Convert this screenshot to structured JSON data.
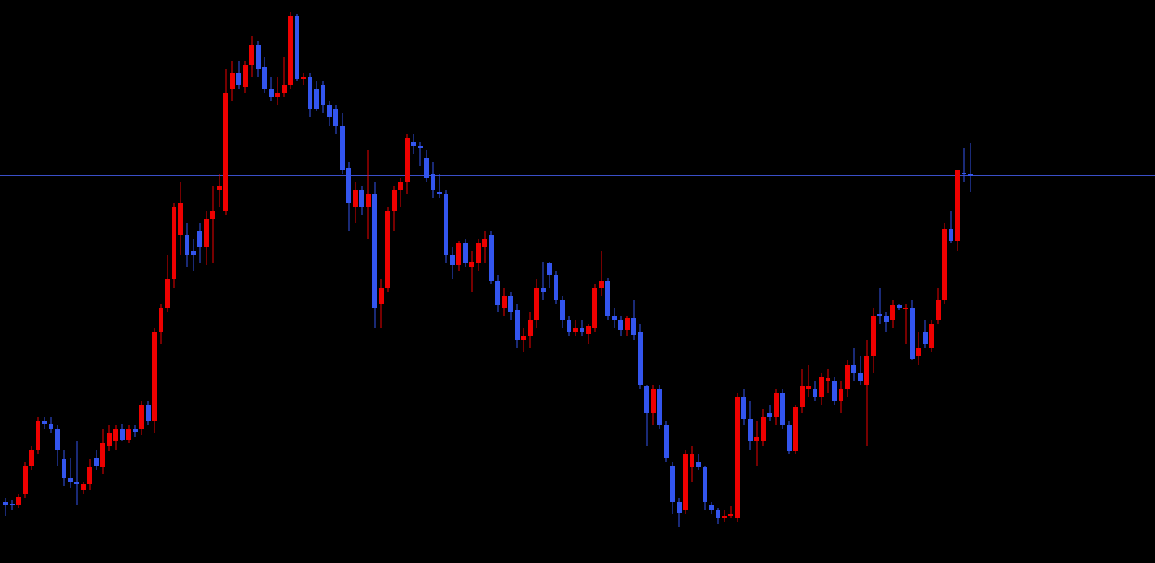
{
  "chart_data": {
    "type": "candlestick",
    "ylim": [
      0,
      695
    ],
    "up_color": "#ee0000",
    "down_color": "#3355ee",
    "hline": {
      "value": 479,
      "color": "#3a4fc8"
    },
    "series": {
      "open": [
        75,
        73,
        72,
        85,
        120,
        140,
        175,
        172,
        165,
        128,
        105,
        100,
        90,
        98,
        130,
        118,
        145,
        150,
        165,
        152,
        165,
        165,
        195,
        175,
        285,
        315,
        350,
        405,
        405,
        385,
        410,
        390,
        425,
        460,
        435,
        585,
        605,
        588,
        615,
        640,
        612,
        585,
        575,
        580,
        590,
        675,
        598,
        600,
        585,
        590,
        565,
        560,
        540,
        488,
        440,
        460,
        440,
        455,
        320,
        340,
        435,
        460,
        470,
        520,
        515,
        500,
        480,
        458,
        455,
        380,
        368,
        395,
        365,
        370,
        390,
        405,
        348,
        315,
        330,
        312,
        275,
        280,
        300,
        340,
        370,
        355,
        325,
        300,
        285,
        290,
        283,
        290,
        340,
        348,
        305,
        300,
        288,
        303,
        285,
        218,
        185,
        215,
        170,
        120,
        75,
        65,
        118,
        125,
        118,
        72,
        65,
        55,
        58,
        55,
        205,
        178,
        150,
        150,
        185,
        180,
        210,
        170,
        138,
        192,
        215,
        215,
        205,
        225,
        225,
        200,
        215,
        245,
        235,
        220,
        255,
        307,
        305,
        300,
        318,
        313,
        315,
        255,
        285,
        265,
        300,
        325,
        412,
        398,
        482,
        480
      ],
      "high": [
        80,
        78,
        85,
        125,
        145,
        180,
        180,
        180,
        170,
        140,
        130,
        150,
        100,
        128,
        140,
        165,
        170,
        170,
        172,
        170,
        170,
        200,
        200,
        290,
        320,
        380,
        445,
        470,
        420,
        400,
        420,
        435,
        465,
        480,
        610,
        620,
        620,
        620,
        650,
        645,
        625,
        600,
        600,
        625,
        680,
        678,
        605,
        605,
        595,
        595,
        570,
        565,
        555,
        495,
        470,
        465,
        510,
        470,
        350,
        440,
        465,
        475,
        530,
        530,
        520,
        510,
        495,
        480,
        460,
        390,
        398,
        400,
        385,
        400,
        410,
        410,
        355,
        340,
        335,
        320,
        290,
        310,
        350,
        372,
        372,
        360,
        330,
        305,
        300,
        300,
        295,
        345,
        385,
        352,
        315,
        305,
        305,
        325,
        295,
        220,
        220,
        220,
        175,
        125,
        80,
        140,
        145,
        135,
        120,
        75,
        68,
        65,
        70,
        210,
        215,
        200,
        175,
        190,
        195,
        215,
        215,
        175,
        195,
        240,
        245,
        225,
        235,
        240,
        230,
        225,
        250,
        265,
        255,
        275,
        315,
        340,
        310,
        325,
        320,
        320,
        325,
        285,
        300,
        300,
        340,
        420,
        435,
        485,
        512,
        518
      ],
      "low": [
        58,
        65,
        68,
        80,
        115,
        135,
        165,
        160,
        120,
        95,
        92,
        72,
        85,
        90,
        115,
        110,
        138,
        140,
        150,
        148,
        155,
        158,
        170,
        160,
        270,
        310,
        340,
        380,
        365,
        360,
        370,
        368,
        370,
        440,
        430,
        570,
        585,
        580,
        600,
        600,
        580,
        570,
        565,
        575,
        585,
        595,
        590,
        550,
        558,
        555,
        540,
        530,
        480,
        410,
        420,
        430,
        400,
        290,
        290,
        335,
        410,
        440,
        455,
        505,
        490,
        470,
        450,
        450,
        370,
        350,
        360,
        365,
        335,
        360,
        370,
        345,
        310,
        305,
        300,
        265,
        260,
        265,
        290,
        325,
        340,
        320,
        290,
        280,
        280,
        280,
        270,
        285,
        330,
        300,
        290,
        280,
        280,
        275,
        215,
        145,
        170,
        165,
        125,
        60,
        45,
        60,
        100,
        115,
        65,
        60,
        48,
        50,
        55,
        50,
        170,
        140,
        120,
        145,
        175,
        170,
        165,
        135,
        135,
        185,
        205,
        200,
        195,
        210,
        195,
        185,
        205,
        225,
        220,
        145,
        235,
        295,
        285,
        290,
        312,
        270,
        250,
        245,
        265,
        260,
        295,
        320,
        395,
        385,
        470,
        458
      ],
      "close": [
        72,
        72,
        82,
        120,
        140,
        175,
        172,
        165,
        140,
        105,
        100,
        98,
        98,
        118,
        120,
        148,
        160,
        165,
        152,
        165,
        162,
        195,
        175,
        285,
        315,
        350,
        440,
        445,
        380,
        380,
        390,
        425,
        435,
        465,
        580,
        605,
        590,
        615,
        640,
        610,
        585,
        575,
        580,
        590,
        675,
        598,
        600,
        560,
        560,
        565,
        550,
        540,
        485,
        445,
        460,
        440,
        455,
        315,
        340,
        435,
        460,
        470,
        525,
        515,
        512,
        475,
        460,
        455,
        380,
        368,
        395,
        370,
        372,
        395,
        400,
        348,
        318,
        330,
        310,
        275,
        280,
        300,
        340,
        335,
        355,
        325,
        300,
        285,
        290,
        285,
        292,
        340,
        348,
        305,
        300,
        288,
        303,
        282,
        220,
        185,
        215,
        170,
        130,
        75,
        62,
        135,
        135,
        118,
        75,
        65,
        55,
        58,
        60,
        205,
        178,
        150,
        155,
        180,
        180,
        210,
        170,
        138,
        192,
        218,
        218,
        205,
        230,
        228,
        200,
        215,
        245,
        235,
        225,
        255,
        305,
        305,
        298,
        318,
        315,
        315,
        252,
        265,
        270,
        295,
        325,
        412,
        398,
        485,
        480,
        478
      ]
    }
  }
}
